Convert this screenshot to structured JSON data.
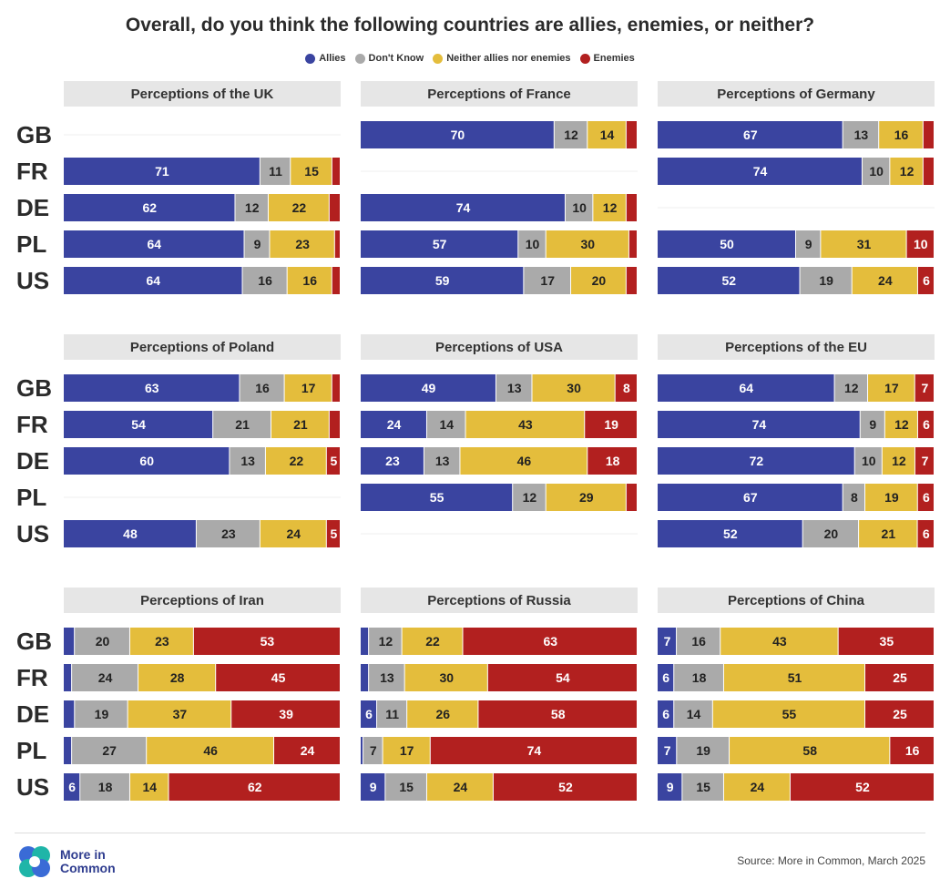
{
  "title": "Overall, do you think the following countries are allies, enemies, or neither?",
  "legend": [
    {
      "label": "Allies",
      "color": "#3a44a0"
    },
    {
      "label": "Don't Know",
      "color": "#aaaaaa"
    },
    {
      "label": "Neither allies nor enemies",
      "color": "#e4bd3c"
    },
    {
      "label": "Enemies",
      "color": "#b2201f"
    }
  ],
  "row_labels": [
    "GB",
    "FR",
    "DE",
    "PL",
    "US"
  ],
  "chart_data": [
    {
      "type": "bar",
      "title": "Perceptions of the UK",
      "categories": [
        "GB",
        "FR",
        "DE",
        "PL",
        "US"
      ],
      "series": [
        {
          "name": "Allies",
          "values": [
            null,
            71,
            62,
            64,
            64
          ]
        },
        {
          "name": "Don't Know",
          "values": [
            null,
            11,
            12,
            9,
            16
          ]
        },
        {
          "name": "Neither allies nor enemies",
          "values": [
            null,
            15,
            22,
            23,
            16
          ]
        },
        {
          "name": "Enemies",
          "values": [
            null,
            3,
            4,
            2,
            3
          ]
        }
      ]
    },
    {
      "type": "bar",
      "title": "Perceptions of France",
      "categories": [
        "GB",
        "FR",
        "DE",
        "PL",
        "US"
      ],
      "series": [
        {
          "name": "Allies",
          "values": [
            70,
            null,
            74,
            57,
            59
          ]
        },
        {
          "name": "Don't Know",
          "values": [
            12,
            null,
            10,
            10,
            17
          ]
        },
        {
          "name": "Neither allies nor enemies",
          "values": [
            14,
            null,
            12,
            30,
            20
          ]
        },
        {
          "name": "Enemies",
          "values": [
            4,
            null,
            4,
            3,
            4
          ]
        }
      ]
    },
    {
      "type": "bar",
      "title": "Perceptions of Germany",
      "categories": [
        "GB",
        "FR",
        "DE",
        "PL",
        "US"
      ],
      "series": [
        {
          "name": "Allies",
          "values": [
            67,
            74,
            null,
            50,
            52
          ]
        },
        {
          "name": "Don't Know",
          "values": [
            13,
            10,
            null,
            9,
            19
          ]
        },
        {
          "name": "Neither allies nor enemies",
          "values": [
            16,
            12,
            null,
            31,
            24
          ]
        },
        {
          "name": "Enemies",
          "values": [
            4,
            4,
            null,
            10,
            6
          ]
        }
      ]
    },
    {
      "type": "bar",
      "title": "Perceptions of Poland",
      "categories": [
        "GB",
        "FR",
        "DE",
        "PL",
        "US"
      ],
      "series": [
        {
          "name": "Allies",
          "values": [
            63,
            54,
            60,
            null,
            48
          ]
        },
        {
          "name": "Don't Know",
          "values": [
            16,
            21,
            13,
            null,
            23
          ]
        },
        {
          "name": "Neither allies nor enemies",
          "values": [
            17,
            21,
            22,
            null,
            24
          ]
        },
        {
          "name": "Enemies",
          "values": [
            3,
            4,
            5,
            null,
            5
          ]
        }
      ]
    },
    {
      "type": "bar",
      "title": "Perceptions of USA",
      "categories": [
        "GB",
        "FR",
        "DE",
        "PL",
        "US"
      ],
      "series": [
        {
          "name": "Allies",
          "values": [
            49,
            24,
            23,
            55,
            null
          ]
        },
        {
          "name": "Don't Know",
          "values": [
            13,
            14,
            13,
            12,
            null
          ]
        },
        {
          "name": "Neither allies nor enemies",
          "values": [
            30,
            43,
            46,
            29,
            null
          ]
        },
        {
          "name": "Enemies",
          "values": [
            8,
            19,
            18,
            4,
            null
          ]
        }
      ]
    },
    {
      "type": "bar",
      "title": "Perceptions of the EU",
      "categories": [
        "GB",
        "FR",
        "DE",
        "PL",
        "US"
      ],
      "series": [
        {
          "name": "Allies",
          "values": [
            64,
            74,
            72,
            67,
            52
          ]
        },
        {
          "name": "Don't Know",
          "values": [
            12,
            9,
            10,
            8,
            20
          ]
        },
        {
          "name": "Neither allies nor enemies",
          "values": [
            17,
            12,
            12,
            19,
            21
          ]
        },
        {
          "name": "Enemies",
          "values": [
            7,
            6,
            7,
            6,
            6
          ]
        }
      ]
    },
    {
      "type": "bar",
      "title": "Perceptions of Iran",
      "categories": [
        "GB",
        "FR",
        "DE",
        "PL",
        "US"
      ],
      "series": [
        {
          "name": "Allies",
          "values": [
            4,
            3,
            4,
            3,
            6
          ]
        },
        {
          "name": "Don't Know",
          "values": [
            20,
            24,
            19,
            27,
            18
          ]
        },
        {
          "name": "Neither allies nor enemies",
          "values": [
            23,
            28,
            37,
            46,
            14
          ]
        },
        {
          "name": "Enemies",
          "values": [
            53,
            45,
            39,
            24,
            62
          ]
        }
      ]
    },
    {
      "type": "bar",
      "title": "Perceptions of Russia",
      "categories": [
        "GB",
        "FR",
        "DE",
        "PL",
        "US"
      ],
      "series": [
        {
          "name": "Allies",
          "values": [
            3,
            3,
            6,
            1,
            9
          ]
        },
        {
          "name": "Don't Know",
          "values": [
            12,
            13,
            11,
            7,
            15
          ]
        },
        {
          "name": "Neither allies nor enemies",
          "values": [
            22,
            30,
            26,
            17,
            24
          ]
        },
        {
          "name": "Enemies",
          "values": [
            63,
            54,
            58,
            74,
            52
          ]
        }
      ]
    },
    {
      "type": "bar",
      "title": "Perceptions of China",
      "categories": [
        "GB",
        "FR",
        "DE",
        "PL",
        "US"
      ],
      "series": [
        {
          "name": "Allies",
          "values": [
            7,
            6,
            6,
            7,
            9
          ]
        },
        {
          "name": "Don't Know",
          "values": [
            16,
            18,
            14,
            19,
            15
          ]
        },
        {
          "name": "Neither allies nor enemies",
          "values": [
            43,
            51,
            55,
            58,
            24
          ]
        },
        {
          "name": "Enemies",
          "values": [
            35,
            25,
            25,
            16,
            52
          ]
        }
      ]
    }
  ],
  "footer": {
    "logo_text": "More in Common",
    "source": "Source: More in Common, March 2025"
  }
}
